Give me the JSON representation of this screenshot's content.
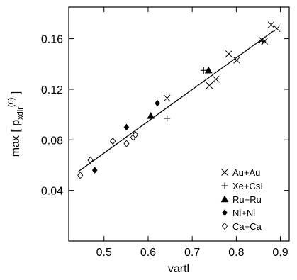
{
  "chart_data": {
    "type": "scatter",
    "xlabel": "vartl",
    "ylabel": {
      "prefix": "max [ p",
      "sub": "xdir",
      "sup": "(0)",
      "suffix": " ]"
    },
    "xlim": [
      0.42,
      0.92
    ],
    "ylim": [
      0.0,
      0.185
    ],
    "x_ticks": [
      {
        "value": 0.5,
        "label": "0.5"
      },
      {
        "value": 0.6,
        "label": "0.6"
      },
      {
        "value": 0.7,
        "label": "0.7"
      },
      {
        "value": 0.8,
        "label": "0.8"
      },
      {
        "value": 0.9,
        "label": "0.9"
      }
    ],
    "y_ticks": [
      {
        "value": 0.04,
        "label": "0.04"
      },
      {
        "value": 0.08,
        "label": "0.08"
      },
      {
        "value": 0.12,
        "label": "0.12"
      },
      {
        "value": 0.16,
        "label": "0.16"
      }
    ],
    "grid": false,
    "legend_position": "bottom-right",
    "series": [
      {
        "name": "Au+Au",
        "marker": "x",
        "points": [
          [
            0.643,
            0.113
          ],
          [
            0.739,
            0.123
          ],
          [
            0.754,
            0.128
          ],
          [
            0.783,
            0.148
          ],
          [
            0.801,
            0.143
          ],
          [
            0.858,
            0.159
          ],
          [
            0.864,
            0.158
          ],
          [
            0.879,
            0.171
          ],
          [
            0.892,
            0.168
          ]
        ]
      },
      {
        "name": "Xe+CsI",
        "marker": "plus",
        "points": [
          [
            0.643,
            0.097
          ],
          [
            0.726,
            0.135
          ],
          [
            0.86,
            0.158
          ]
        ]
      },
      {
        "name": "Ru+Ru",
        "marker": "triangle",
        "points": [
          [
            0.606,
            0.099
          ],
          [
            0.737,
            0.135
          ]
        ]
      },
      {
        "name": "Ni+Ni",
        "marker": "diamond-filled",
        "points": [
          [
            0.479,
            0.056
          ],
          [
            0.551,
            0.09
          ],
          [
            0.621,
            0.109
          ]
        ]
      },
      {
        "name": "Ca+Ca",
        "marker": "diamond-open",
        "points": [
          [
            0.446,
            0.052
          ],
          [
            0.469,
            0.064
          ],
          [
            0.52,
            0.079
          ],
          [
            0.551,
            0.077
          ],
          [
            0.566,
            0.082
          ],
          [
            0.571,
            0.084
          ]
        ]
      }
    ],
    "fit_line": {
      "x": [
        0.442,
        0.884
      ],
      "y": [
        0.055,
        0.166
      ]
    }
  }
}
